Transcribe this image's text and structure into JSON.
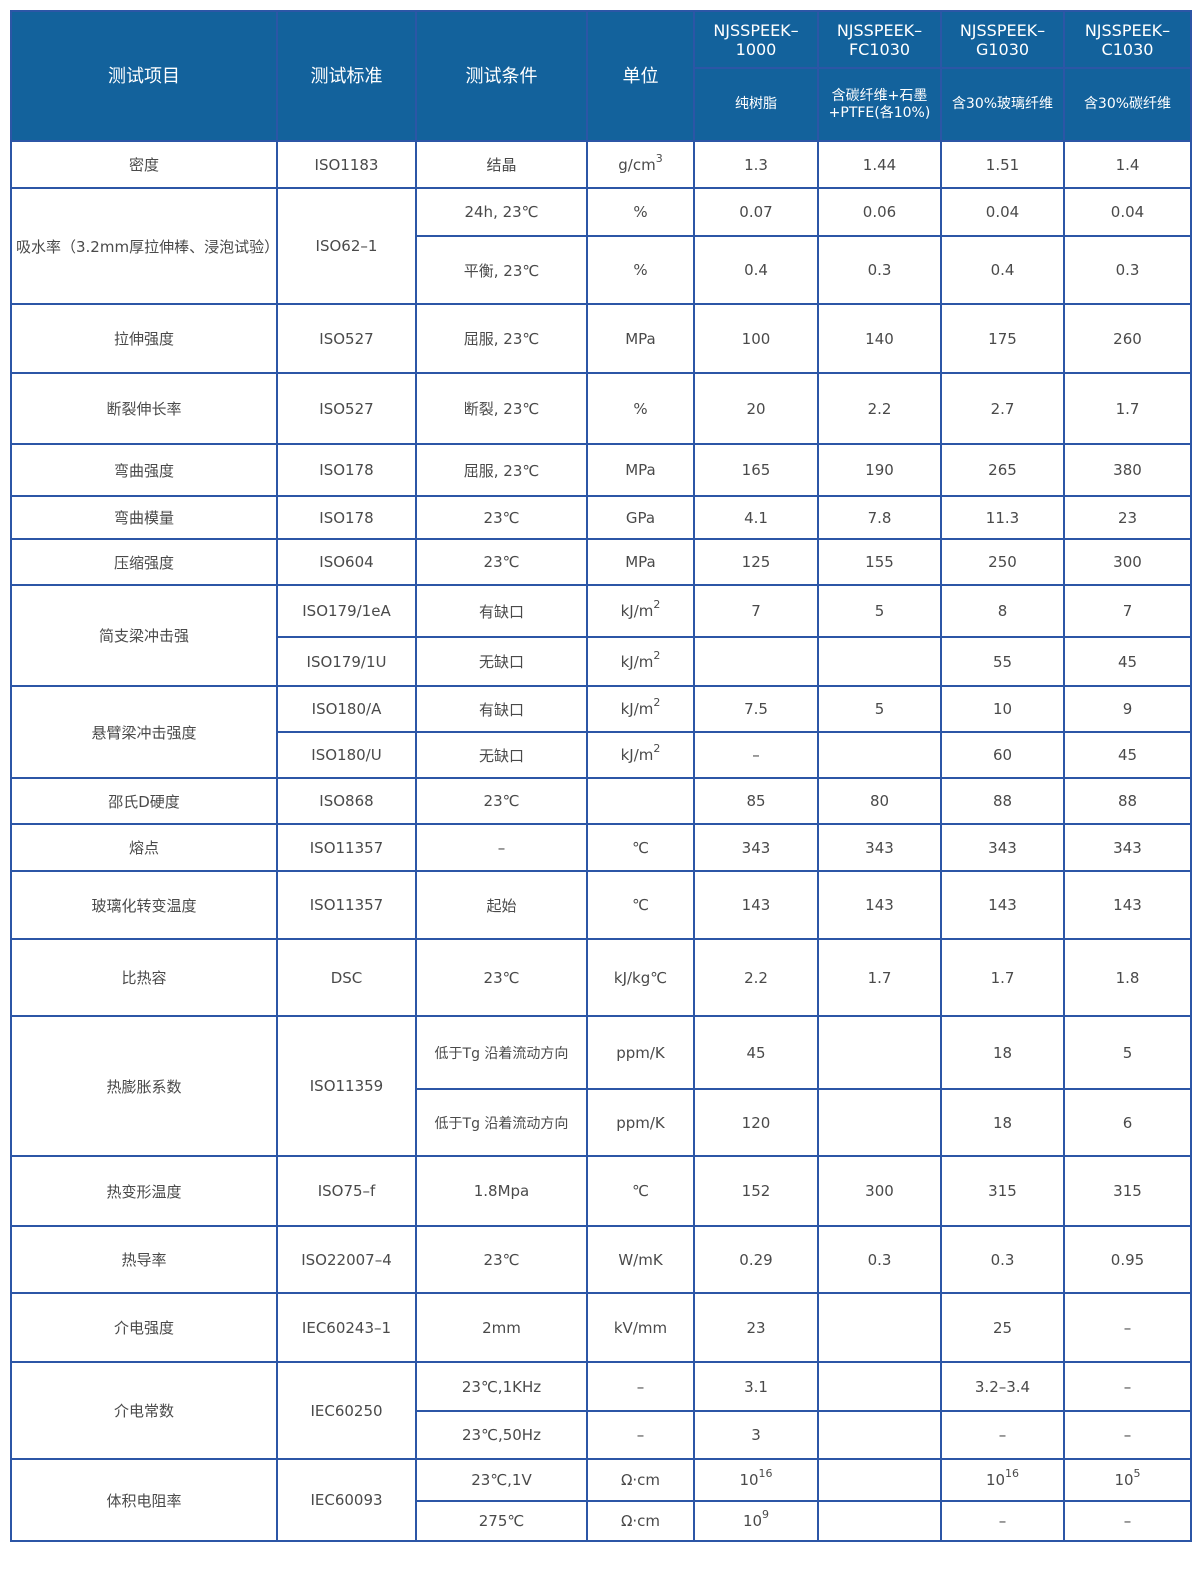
{
  "header": {
    "col_item": "测试项目",
    "col_standard": "测试标准",
    "col_condition": "测试条件",
    "col_unit": "单位",
    "grades": [
      {
        "name": "NJSSPEEK–1000",
        "desc": "纯树脂"
      },
      {
        "name": "NJSSPEEK–FC1030",
        "desc": "含碳纤维+石墨+PTFE(各10%)"
      },
      {
        "name": "NJSSPEEK–G1030",
        "desc": "含30%玻璃纤维"
      },
      {
        "name": "NJSSPEEK–C1030",
        "desc": "含30%碳纤维"
      }
    ]
  },
  "colors": {
    "header_bg": "#13629c",
    "border": "#2c56a6",
    "text": "#4a4a4a"
  },
  "rows": [
    {
      "item": "密度",
      "standard": "ISO1183",
      "sub": [
        {
          "cond": "结晶",
          "unit": "g/cm",
          "unit_sup": "3",
          "values": [
            "1.3",
            "1.44",
            "1.51",
            "1.4"
          ],
          "h": 47
        }
      ]
    },
    {
      "item": "吸水率（3.2mm厚拉伸棒、浸泡试验）",
      "standard": "ISO62–1",
      "sub": [
        {
          "cond": "24h, 23℃",
          "unit": "%",
          "values": [
            "0.07",
            "0.06",
            "0.04",
            "0.04"
          ],
          "h": 48
        },
        {
          "cond": "平衡, 23℃",
          "unit": "%",
          "values": [
            "0.4",
            "0.3",
            "0.4",
            "0.3"
          ],
          "h": 68
        }
      ]
    },
    {
      "item": "拉伸强度",
      "standard": "ISO527",
      "sub": [
        {
          "cond": "屈服, 23℃",
          "unit": "MPa",
          "values": [
            "100",
            "140",
            "175",
            "260"
          ],
          "h": 69
        }
      ]
    },
    {
      "item": "断裂伸长率",
      "standard": "ISO527",
      "sub": [
        {
          "cond": "断裂, 23℃",
          "unit": "%",
          "values": [
            "20",
            "2.2",
            "2.7",
            "1.7"
          ],
          "h": 71
        }
      ]
    },
    {
      "item": "弯曲强度",
      "standard": "ISO178",
      "sub": [
        {
          "cond": "屈服, 23℃",
          "unit": "MPa",
          "values": [
            "165",
            "190",
            "265",
            "380"
          ],
          "h": 52
        }
      ]
    },
    {
      "item": "弯曲模量",
      "standard": "ISO178",
      "sub": [
        {
          "cond": "23℃",
          "unit": "GPa",
          "values": [
            "4.1",
            "7.8",
            "11.3",
            "23"
          ],
          "h": 43
        }
      ]
    },
    {
      "item": "压缩强度",
      "standard": "ISO604",
      "sub": [
        {
          "cond": "23℃",
          "unit": "MPa",
          "values": [
            "125",
            "155",
            "250",
            "300"
          ],
          "h": 46
        }
      ]
    },
    {
      "item": "简支梁冲击强",
      "sub": [
        {
          "standard": "ISO179/1eA",
          "cond": "有缺口",
          "unit": "kJ/m",
          "unit_sup": "2",
          "values": [
            "7",
            "5",
            "8",
            "7"
          ],
          "h": 52
        },
        {
          "standard": "ISO179/1U",
          "cond": "无缺口",
          "unit": "kJ/m",
          "unit_sup": "2",
          "values": [
            "",
            "",
            "55",
            "45"
          ],
          "h": 49
        }
      ]
    },
    {
      "item": "悬臂梁冲击强度",
      "sub": [
        {
          "standard": "ISO180/A",
          "cond": "有缺口",
          "unit": "kJ/m",
          "unit_sup": "2",
          "values": [
            "7.5",
            "5",
            "10",
            "9"
          ],
          "h": 46
        },
        {
          "standard": "ISO180/U",
          "cond": "无缺口",
          "unit": "kJ/m",
          "unit_sup": "2",
          "values": [
            "–",
            "",
            "60",
            "45"
          ],
          "h": 46
        }
      ]
    },
    {
      "item": "邵氏D硬度",
      "standard": "ISO868",
      "sub": [
        {
          "cond": "23℃",
          "unit": "",
          "values": [
            "85",
            "80",
            "88",
            "88"
          ],
          "h": 46
        }
      ]
    },
    {
      "item": "熔点",
      "standard": "ISO11357",
      "sub": [
        {
          "cond": "–",
          "unit": "℃",
          "values": [
            "343",
            "343",
            "343",
            "343"
          ],
          "h": 47
        }
      ]
    },
    {
      "item": "玻璃化转变温度",
      "standard": "ISO11357",
      "sub": [
        {
          "cond": "起始",
          "unit": "℃",
          "values": [
            "143",
            "143",
            "143",
            "143"
          ],
          "h": 68
        }
      ]
    },
    {
      "item": "比热容",
      "standard": "DSC",
      "sub": [
        {
          "cond": "23℃",
          "unit": "kJ/kg℃",
          "values": [
            "2.2",
            "1.7",
            "1.7",
            "1.8"
          ],
          "h": 77
        }
      ]
    },
    {
      "item": "热膨胀系数",
      "standard": "ISO11359",
      "sub": [
        {
          "cond": "低于Tg 沿着流动方向",
          "unit": "ppm/K",
          "values": [
            "45",
            "",
            "18",
            "5"
          ],
          "h": 73
        },
        {
          "cond": "低于Tg 沿着流动方向",
          "unit": "ppm/K",
          "values": [
            "120",
            "",
            "18",
            "6"
          ],
          "h": 67
        }
      ]
    },
    {
      "item": "热变形温度",
      "standard": "ISO75–f",
      "sub": [
        {
          "cond": "1.8Mpa",
          "unit": "℃",
          "values": [
            "152",
            "300",
            "315",
            "315"
          ],
          "h": 70
        }
      ]
    },
    {
      "item": "热导率",
      "standard": "ISO22007–4",
      "sub": [
        {
          "cond": "23℃",
          "unit": "W/mK",
          "values": [
            "0.29",
            "0.3",
            "0.3",
            "0.95"
          ],
          "h": 67
        }
      ]
    },
    {
      "item": "介电强度",
      "standard": "IEC60243–1",
      "sub": [
        {
          "cond": "2mm",
          "unit": "kV/mm",
          "values": [
            "23",
            "",
            "25",
            "–"
          ],
          "h": 69
        }
      ]
    },
    {
      "item": "介电常数",
      "standard": "IEC60250",
      "sub": [
        {
          "cond": "23℃,1KHz",
          "unit": "–",
          "values": [
            "3.1",
            "",
            "3.2–3.4",
            "–"
          ],
          "h": 49
        },
        {
          "cond": "23℃,50Hz",
          "unit": "–",
          "values": [
            "3",
            "",
            "–",
            "–"
          ],
          "h": 48
        }
      ]
    },
    {
      "item": "体积电阻率",
      "standard": "IEC60093",
      "sub": [
        {
          "cond": "23℃,1V",
          "unit": "Ω·cm",
          "values": [
            "10",
            "",
            "10",
            "10"
          ],
          "value_sups": [
            "16",
            "",
            "16",
            "5"
          ],
          "h": 42
        },
        {
          "cond": "275℃",
          "unit": "Ω·cm",
          "values": [
            "10",
            "",
            "–",
            "–"
          ],
          "value_sups": [
            "9",
            "",
            "",
            ""
          ],
          "h": 40
        }
      ]
    }
  ]
}
